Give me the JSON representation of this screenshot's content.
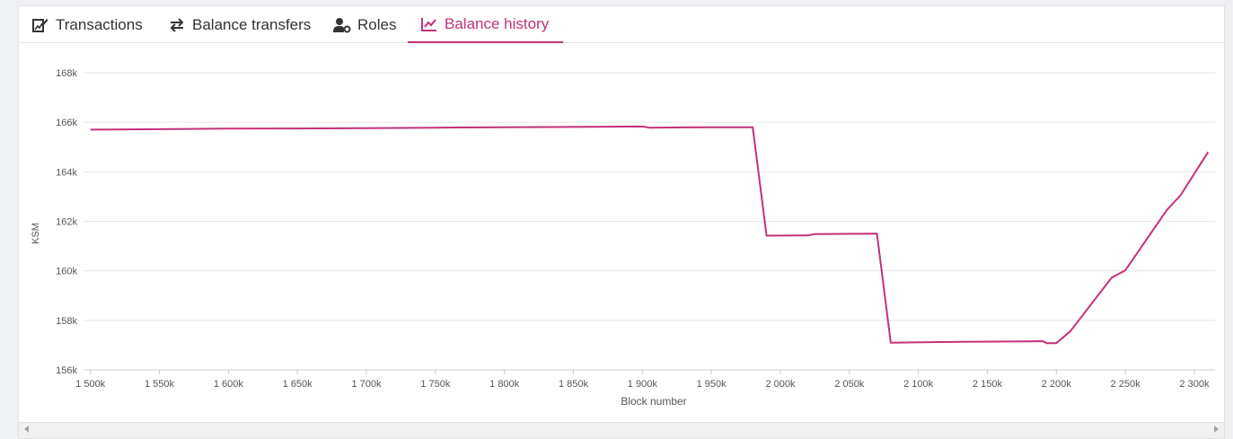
{
  "tabs": [
    {
      "label": "Transactions",
      "icon": "edit-chart-icon",
      "active": false
    },
    {
      "label": "Balance transfers",
      "icon": "exchange-icon",
      "active": false
    },
    {
      "label": "Roles",
      "icon": "user-cog-icon",
      "active": false
    },
    {
      "label": "Balance history",
      "icon": "chart-line-icon",
      "active": true
    }
  ],
  "colors": {
    "accent": "#c3317a",
    "line": "#c3317a"
  },
  "chart_data": {
    "type": "line",
    "title": "",
    "xlabel": "Block number",
    "ylabel": "KSM",
    "xlim": [
      1495000,
      2315000
    ],
    "ylim": [
      156000,
      168000
    ],
    "x_ticks": [
      1500000,
      1550000,
      1600000,
      1650000,
      1700000,
      1750000,
      1800000,
      1850000,
      1900000,
      1950000,
      2000000,
      2050000,
      2100000,
      2150000,
      2200000,
      2250000,
      2300000
    ],
    "x_tick_labels": [
      "1 500k",
      "1 550k",
      "1 600k",
      "1 650k",
      "1 700k",
      "1 750k",
      "1 800k",
      "1 850k",
      "1 900k",
      "1 950k",
      "2 000k",
      "2 050k",
      "2 100k",
      "2 150k",
      "2 200k",
      "2 250k",
      "2 300k"
    ],
    "y_ticks": [
      156000,
      158000,
      160000,
      162000,
      164000,
      166000,
      168000
    ],
    "y_tick_labels": [
      "156k",
      "158k",
      "160k",
      "162k",
      "164k",
      "166k",
      "168k"
    ],
    "grid": true,
    "series": [
      {
        "x": [
          1500000,
          1550000,
          1600000,
          1650000,
          1700000,
          1750000,
          1800000,
          1850000,
          1900000,
          1905000,
          1950000,
          1980000,
          1990000,
          2020000,
          2025000,
          2070000,
          2080000,
          2130000,
          2180000,
          2190000,
          2193000,
          2200000,
          2210000,
          2240000,
          2250000,
          2280000,
          2290000,
          2310000
        ],
        "y": [
          165700,
          165720,
          165740,
          165750,
          165760,
          165780,
          165800,
          165810,
          165830,
          165780,
          165800,
          165800,
          161420,
          161430,
          161480,
          161500,
          157100,
          157130,
          157150,
          157160,
          157080,
          157080,
          157550,
          159720,
          160020,
          162450,
          163050,
          164800
        ]
      }
    ]
  }
}
